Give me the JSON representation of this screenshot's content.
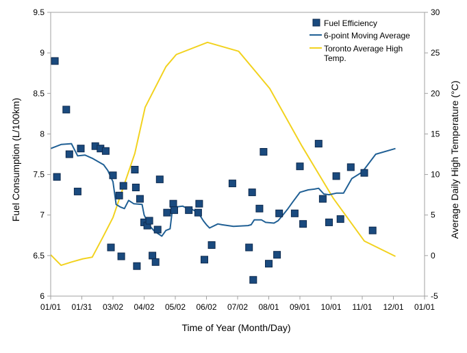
{
  "chart_data": {
    "type": "scatter",
    "title": "",
    "xlabel": "Time of Year (Month/Day)",
    "ylabel_left": "Fuel Consumption (L/100km)",
    "ylabel_right": "Average Daily High Temperature (°C)",
    "x_unit": "day of year",
    "x_ticks": [
      {
        "x": 0,
        "label": "01/01"
      },
      {
        "x": 30,
        "label": "01/31"
      },
      {
        "x": 60,
        "label": "03/02"
      },
      {
        "x": 90,
        "label": "04/02"
      },
      {
        "x": 120,
        "label": "05/02"
      },
      {
        "x": 150,
        "label": "06/02"
      },
      {
        "x": 180,
        "label": "07/02"
      },
      {
        "x": 210,
        "label": "08/01"
      },
      {
        "x": 240,
        "label": "09/01"
      },
      {
        "x": 270,
        "label": "10/01"
      },
      {
        "x": 300,
        "label": "11/01"
      },
      {
        "x": 330,
        "label": "12/01"
      },
      {
        "x": 360,
        "label": "01/01"
      }
    ],
    "xlim": [
      0,
      360
    ],
    "ylim_left": [
      6,
      9.5
    ],
    "ylim_right": [
      -5,
      30
    ],
    "y_ticks_left": [
      "6",
      "6.5",
      "7",
      "7.5",
      "8",
      "8.5",
      "9",
      "9.5"
    ],
    "y_ticks_right": [
      "-5",
      "0",
      "5",
      "10",
      "15",
      "20",
      "25",
      "30"
    ],
    "grid": false,
    "legend_position": "top-right",
    "colors": {
      "fuel_marker": "#1a4a7e",
      "fuel_marker_stroke": "#0e2a4e",
      "moving_average": "#1f5f94",
      "temperature": "#f2d21e",
      "axis": "#a0a0a0"
    },
    "series": [
      {
        "name": "Fuel Efficiency",
        "kind": "scatter",
        "axis": "left",
        "points": [
          [
            4,
            8.9
          ],
          [
            6,
            7.47
          ],
          [
            15,
            8.3
          ],
          [
            18,
            7.75
          ],
          [
            26,
            7.29
          ],
          [
            29,
            7.82
          ],
          [
            43,
            7.85
          ],
          [
            48,
            7.82
          ],
          [
            53,
            7.79
          ],
          [
            58,
            6.6
          ],
          [
            60,
            7.49
          ],
          [
            66,
            7.24
          ],
          [
            68,
            6.49
          ],
          [
            70,
            7.36
          ],
          [
            81,
            7.56
          ],
          [
            82,
            7.34
          ],
          [
            83,
            6.37
          ],
          [
            86,
            7.2
          ],
          [
            90,
            6.91
          ],
          [
            93,
            6.87
          ],
          [
            95,
            6.93
          ],
          [
            98,
            6.5
          ],
          [
            101,
            6.42
          ],
          [
            103,
            6.82
          ],
          [
            105,
            7.44
          ],
          [
            112,
            7.03
          ],
          [
            118,
            7.14
          ],
          [
            119,
            7.06
          ],
          [
            133,
            7.06
          ],
          [
            142,
            7.03
          ],
          [
            143,
            7.14
          ],
          [
            148,
            6.45
          ],
          [
            155,
            6.63
          ],
          [
            175,
            7.39
          ],
          [
            191,
            6.6
          ],
          [
            194,
            7.28
          ],
          [
            195,
            6.2
          ],
          [
            201,
            7.08
          ],
          [
            205,
            7.78
          ],
          [
            210,
            6.4
          ],
          [
            218,
            6.51
          ],
          [
            220,
            7.02
          ],
          [
            235,
            7.02
          ],
          [
            240,
            7.6
          ],
          [
            243,
            6.89
          ],
          [
            258,
            7.88
          ],
          [
            262,
            7.2
          ],
          [
            268,
            6.91
          ],
          [
            275,
            7.48
          ],
          [
            279,
            6.95
          ],
          [
            289,
            7.59
          ],
          [
            302,
            7.52
          ],
          [
            310,
            6.81
          ]
        ]
      },
      {
        "name": "6-point Moving Average",
        "kind": "line",
        "axis": "left",
        "points": [
          [
            0,
            7.82
          ],
          [
            10,
            7.87
          ],
          [
            20,
            7.88
          ],
          [
            26,
            7.73
          ],
          [
            33,
            7.74
          ],
          [
            40,
            7.7
          ],
          [
            51,
            7.62
          ],
          [
            55,
            7.55
          ],
          [
            60,
            7.41
          ],
          [
            63,
            7.13
          ],
          [
            67,
            7.1
          ],
          [
            71,
            7.08
          ],
          [
            75,
            7.18
          ],
          [
            80,
            7.14
          ],
          [
            88,
            7.13
          ],
          [
            90,
            7.0
          ],
          [
            95,
            6.87
          ],
          [
            100,
            6.8
          ],
          [
            107,
            6.74
          ],
          [
            111,
            6.81
          ],
          [
            115,
            6.83
          ],
          [
            117,
            7.05
          ],
          [
            121,
            7.1
          ],
          [
            127,
            7.11
          ],
          [
            132,
            7.08
          ],
          [
            136,
            7.07
          ],
          [
            142,
            7.03
          ],
          [
            147,
            6.93
          ],
          [
            150,
            6.88
          ],
          [
            153,
            6.84
          ],
          [
            161,
            6.89
          ],
          [
            165,
            6.88
          ],
          [
            176,
            6.86
          ],
          [
            190,
            6.87
          ],
          [
            193,
            6.88
          ],
          [
            196,
            6.94
          ],
          [
            203,
            6.94
          ],
          [
            207,
            6.91
          ],
          [
            215,
            6.9
          ],
          [
            219,
            6.93
          ],
          [
            223,
            6.99
          ],
          [
            228,
            7.07
          ],
          [
            233,
            7.16
          ],
          [
            240,
            7.28
          ],
          [
            248,
            7.31
          ],
          [
            254,
            7.32
          ],
          [
            258,
            7.33
          ],
          [
            263,
            7.26
          ],
          [
            268,
            7.25
          ],
          [
            275,
            7.27
          ],
          [
            282,
            7.27
          ],
          [
            290,
            7.45
          ],
          [
            300,
            7.53
          ],
          [
            313,
            7.75
          ],
          [
            332,
            7.82
          ]
        ]
      },
      {
        "name": "Toronto Average High Temp.",
        "kind": "line",
        "axis": "right",
        "points": [
          [
            0,
            0.1
          ],
          [
            10,
            -1.2
          ],
          [
            20,
            -0.8
          ],
          [
            31,
            -0.4
          ],
          [
            40,
            -0.2
          ],
          [
            50,
            2.2
          ],
          [
            60,
            4.7
          ],
          [
            81,
            12.6
          ],
          [
            91,
            18.3
          ],
          [
            111,
            23.3
          ],
          [
            121,
            24.8
          ],
          [
            151,
            26.3
          ],
          [
            181,
            25.2
          ],
          [
            211,
            20.6
          ],
          [
            242,
            13.5
          ],
          [
            272,
            7.1
          ],
          [
            302,
            1.8
          ],
          [
            332,
            -0.1
          ]
        ]
      }
    ]
  }
}
